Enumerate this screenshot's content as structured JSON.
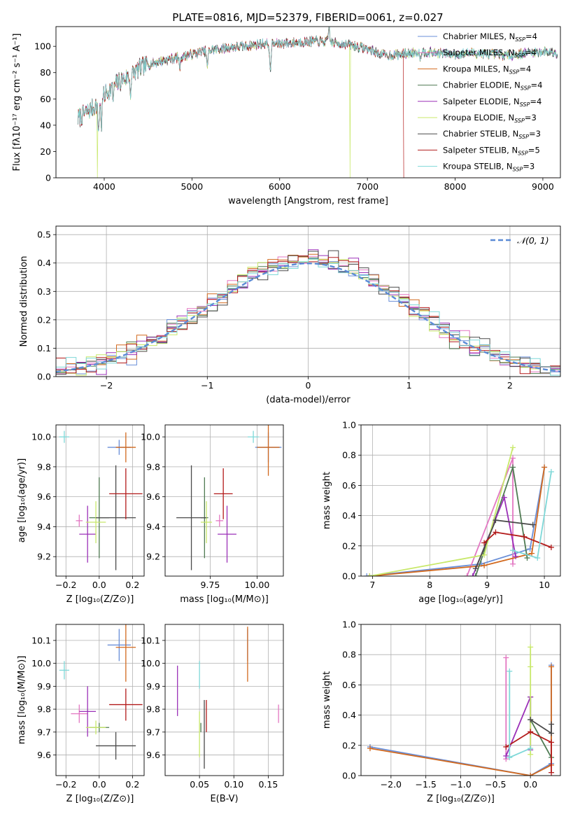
{
  "figure": {
    "title": "PLATE=0816, MJD=52379, FIBERID=0061, z=0.027"
  },
  "colors": {
    "Chabrier MILES": "#6a8fd8",
    "Salpeter MILES": "#e377c2",
    "Kroupa MILES": "#d2691e",
    "Chabrier ELODIE": "#4f7a52",
    "Salpeter ELODIE": "#9b30b8",
    "Kroupa ELODIE": "#c8e86a",
    "Chabrier STELIB": "#4a4a4a",
    "Salpeter STELIB": "#b31b1b",
    "Kroupa STELIB": "#7ed8d8",
    "normal": "#5b8bd6"
  },
  "chart_data": [
    {
      "id": "spectrum",
      "type": "line",
      "xlabel": "wavelength [Angstrom, rest frame]",
      "ylabel": "Flux [fλ10⁻¹⁷ erg cm⁻² s⁻¹ A⁻¹]",
      "xlim": [
        3450,
        9200
      ],
      "ylim": [
        0,
        115
      ],
      "xticks": [
        4000,
        5000,
        6000,
        7000,
        8000,
        9000
      ],
      "yticks": [
        0,
        20,
        40,
        60,
        80,
        100
      ],
      "legend_position": "top-right",
      "continuum_x": [
        3700,
        3800,
        3900,
        4000,
        4100,
        4200,
        4300,
        4400,
        4500,
        4600,
        4800,
        5000,
        5200,
        5400,
        5600,
        5800,
        6000,
        6200,
        6400,
        6600,
        6800,
        7000,
        7200,
        7400,
        7600,
        7800,
        8000,
        8200,
        8400,
        8600,
        8800,
        9000,
        9200
      ],
      "continuum_y": [
        45,
        50,
        55,
        63,
        70,
        74,
        78,
        83,
        86,
        88,
        91,
        94,
        97,
        99,
        100,
        102,
        102,
        103,
        104,
        103,
        101,
        98,
        93,
        94,
        96,
        95,
        94,
        95,
        94,
        93,
        95,
        96,
        95
      ],
      "series": [
        {
          "name": "Chabrier MILES",
          "nssp": "4"
        },
        {
          "name": "Salpeter MILES",
          "nssp": "4"
        },
        {
          "name": "Kroupa MILES",
          "nssp": "4"
        },
        {
          "name": "Chabrier ELODIE",
          "nssp": "4"
        },
        {
          "name": "Salpeter ELODIE",
          "nssp": "4"
        },
        {
          "name": "Kroupa ELODIE",
          "nssp": "3"
        },
        {
          "name": "Chabrier STELIB",
          "nssp": "3"
        },
        {
          "name": "Salpeter STELIB",
          "nssp": "5"
        },
        {
          "name": "Kroupa STELIB",
          "nssp": "3"
        }
      ],
      "drops": [
        {
          "series": "Kroupa ELODIE",
          "x_start": 3920,
          "x_end": 3920
        },
        {
          "series": "Kroupa ELODIE",
          "x_start": 6800,
          "x_end": 6800
        },
        {
          "series": "Salpeter STELIB",
          "x_start": 7410,
          "x_end": 9200
        }
      ]
    },
    {
      "id": "residuals",
      "type": "step-histogram",
      "xlabel": "(data-model)/error",
      "ylabel": "Normed distribution",
      "xlim": [
        -2.5,
        2.5
      ],
      "ylim": [
        0,
        0.53
      ],
      "xticks": [
        -2,
        -1,
        0,
        1,
        2
      ],
      "xtick_labels": [
        "−2",
        "−1",
        "0",
        "1",
        "2"
      ],
      "yticks": [
        0,
        0.1,
        0.2,
        0.3,
        0.4,
        0.5
      ],
      "ytick_labels": [
        "0.0",
        "0.1",
        "0.2",
        "0.3",
        "0.4",
        "0.5"
      ],
      "grid": true,
      "bin_width": 0.1,
      "normal_label": "𝒩(0, 1)",
      "legend_position": "top-right"
    },
    {
      "id": "age_vs_Z",
      "type": "errorbar",
      "xlabel": "Z [log₁₀(Z/Z⊙)]",
      "ylabel": "age  [log₁₀(age/yr)]",
      "xlim": [
        -0.26,
        0.27
      ],
      "ylim": [
        9.07,
        10.08
      ],
      "xticks": [
        -0.2,
        0.0,
        0.2
      ],
      "xtick_labels": [
        "−0.2",
        "0.0",
        "0.2"
      ],
      "yticks": [
        9.2,
        9.4,
        9.6,
        9.8,
        10.0
      ],
      "ytick_labels": [
        "9.2",
        "9.4",
        "9.6",
        "9.8",
        "10.0"
      ],
      "grid": true,
      "points": [
        {
          "series": "Chabrier MILES",
          "x": 0.12,
          "xerr": 0.07,
          "y": 9.93,
          "yerr": 0.05
        },
        {
          "series": "Salpeter MILES",
          "x": -0.12,
          "xerr": 0.02,
          "y": 9.44,
          "yerr": 0.04
        },
        {
          "series": "Kroupa MILES",
          "x": 0.16,
          "xerr": 0.06,
          "y": 9.93,
          "yerr": 0.1
        },
        {
          "series": "Chabrier ELODIE",
          "x": 0.0,
          "xerr": 0.06,
          "y": 9.46,
          "yerr": 0.27
        },
        {
          "series": "Salpeter ELODIE",
          "x": -0.07,
          "xerr": 0.05,
          "y": 9.35,
          "yerr": 0.19
        },
        {
          "series": "Kroupa ELODIE",
          "x": -0.02,
          "xerr": 0.06,
          "y": 9.43,
          "yerr": 0.14
        },
        {
          "series": "Chabrier STELIB",
          "x": 0.1,
          "xerr": 0.12,
          "y": 9.46,
          "yerr": 0.35
        },
        {
          "series": "Salpeter STELIB",
          "x": 0.16,
          "xerr": 0.1,
          "y": 9.62,
          "yerr": 0.17
        },
        {
          "series": "Kroupa STELIB",
          "x": -0.21,
          "xerr": 0.03,
          "y": 10.0,
          "yerr": 0.04
        }
      ]
    },
    {
      "id": "age_vs_mass",
      "type": "errorbar",
      "xlabel": "mass [log₁₀(M/M⊙)]",
      "ylabel": "",
      "xlim": [
        9.51,
        10.14
      ],
      "ylim": [
        9.07,
        10.08
      ],
      "xticks": [
        9.75,
        10.0
      ],
      "xtick_labels": [
        "9.75",
        "10.00"
      ],
      "yticks": [
        9.2,
        9.4,
        9.6,
        9.8,
        10.0
      ],
      "ytick_labels": [
        "9.2",
        "9.4",
        "9.6",
        "9.8",
        "10.0"
      ],
      "grid": true,
      "points": [
        {
          "series": "Chabrier MILES",
          "x": 10.06,
          "xerr": 0.07,
          "y": 9.93,
          "yerr": 0.1
        },
        {
          "series": "Salpeter MILES",
          "x": 9.8,
          "xerr": 0.02,
          "y": 9.44,
          "yerr": 0.04
        },
        {
          "series": "Kroupa MILES",
          "x": 10.06,
          "xerr": 0.06,
          "y": 9.93,
          "yerr": 0.19
        },
        {
          "series": "Chabrier ELODIE",
          "x": 9.72,
          "xerr": 0.02,
          "y": 9.46,
          "yerr": 0.27
        },
        {
          "series": "Salpeter ELODIE",
          "x": 9.84,
          "xerr": 0.05,
          "y": 9.35,
          "yerr": 0.19
        },
        {
          "series": "Kroupa ELODIE",
          "x": 9.73,
          "xerr": 0.03,
          "y": 9.43,
          "yerr": 0.14
        },
        {
          "series": "Chabrier STELIB",
          "x": 9.65,
          "xerr": 0.08,
          "y": 9.46,
          "yerr": 0.35
        },
        {
          "series": "Salpeter STELIB",
          "x": 9.82,
          "xerr": 0.05,
          "y": 9.62,
          "yerr": 0.17
        },
        {
          "series": "Kroupa STELIB",
          "x": 9.98,
          "xerr": 0.03,
          "y": 10.0,
          "yerr": 0.04
        }
      ]
    },
    {
      "id": "massweight_vs_age",
      "type": "line",
      "xlabel": "age  [log₁₀(age/yr)]",
      "ylabel": "mass weight",
      "xlim": [
        6.8,
        10.28
      ],
      "ylim": [
        0,
        1.0
      ],
      "xticks": [
        7,
        8,
        9,
        10
      ],
      "yticks": [
        0,
        0.2,
        0.4,
        0.6,
        0.8,
        1.0
      ],
      "ytick_labels": [
        "0.0",
        "0.2",
        "0.4",
        "0.6",
        "0.8",
        "1.0"
      ],
      "grid": true,
      "series": [
        {
          "name": "Chabrier MILES",
          "x": [
            6.9,
            8.9,
            9.75,
            10.0
          ],
          "y": [
            0.0,
            0.08,
            0.18,
            0.72
          ]
        },
        {
          "name": "Salpeter MILES",
          "x": [
            8.65,
            9.45,
            9.45
          ],
          "y": [
            0.0,
            0.78,
            0.08
          ]
        },
        {
          "name": "Kroupa MILES",
          "x": [
            6.95,
            8.95,
            9.78,
            10.0
          ],
          "y": [
            0.0,
            0.07,
            0.15,
            0.72
          ]
        },
        {
          "name": "Chabrier ELODIE",
          "x": [
            8.8,
            9.45,
            9.7
          ],
          "y": [
            0.0,
            0.72,
            0.12
          ]
        },
        {
          "name": "Salpeter ELODIE",
          "x": [
            8.75,
            9.3,
            9.5
          ],
          "y": [
            0.0,
            0.52,
            0.13
          ]
        },
        {
          "name": "Kroupa ELODIE",
          "x": [
            6.95,
            8.95,
            9.45
          ],
          "y": [
            0.0,
            0.14,
            0.85
          ]
        },
        {
          "name": "Chabrier STELIB",
          "x": [
            8.8,
            9.15,
            9.8
          ],
          "y": [
            0.05,
            0.37,
            0.34
          ]
        },
        {
          "name": "Salpeter STELIB",
          "x": [
            8.95,
            9.15,
            9.65,
            10.12
          ],
          "y": [
            0.22,
            0.29,
            0.26,
            0.19
          ]
        },
        {
          "name": "Kroupa STELIB",
          "x": [
            9.45,
            9.88,
            10.12
          ],
          "y": [
            0.17,
            0.12,
            0.69
          ]
        }
      ]
    },
    {
      "id": "mass_vs_Z",
      "type": "errorbar",
      "xlabel": "Z [log₁₀(Z/Z⊙)]",
      "ylabel": "mass [log₁₀(M/M⊙)]",
      "xlim": [
        -0.26,
        0.27
      ],
      "ylim": [
        9.51,
        10.17
      ],
      "xticks": [
        -0.2,
        0.0,
        0.2
      ],
      "xtick_labels": [
        "−0.2",
        "0.0",
        "0.2"
      ],
      "yticks": [
        9.6,
        9.7,
        9.8,
        9.9,
        10.0,
        10.1
      ],
      "ytick_labels": [
        "9.6",
        "9.7",
        "9.8",
        "9.9",
        "10.0",
        "10.1"
      ],
      "grid": true,
      "points": [
        {
          "series": "Chabrier MILES",
          "x": 0.12,
          "xerr": 0.07,
          "y": 10.08,
          "yerr": 0.07
        },
        {
          "series": "Salpeter MILES",
          "x": -0.12,
          "xerr": 0.05,
          "y": 9.78,
          "yerr": 0.04
        },
        {
          "series": "Kroupa MILES",
          "x": 0.16,
          "xerr": 0.06,
          "y": 10.07,
          "yerr": 0.15
        },
        {
          "series": "Chabrier ELODIE",
          "x": 0.0,
          "xerr": 0.06,
          "y": 9.72,
          "yerr": 0.02
        },
        {
          "series": "Salpeter ELODIE",
          "x": -0.07,
          "xerr": 0.05,
          "y": 9.79,
          "yerr": 0.11
        },
        {
          "series": "Kroupa ELODIE",
          "x": -0.02,
          "xerr": 0.06,
          "y": 9.72,
          "yerr": 0.03
        },
        {
          "series": "Chabrier STELIB",
          "x": 0.1,
          "xerr": 0.12,
          "y": 9.64,
          "yerr": 0.06
        },
        {
          "series": "Salpeter STELIB",
          "x": 0.16,
          "xerr": 0.1,
          "y": 9.82,
          "yerr": 0.07
        },
        {
          "series": "Kroupa STELIB",
          "x": -0.21,
          "xerr": 0.03,
          "y": 9.97,
          "yerr": 0.04
        }
      ]
    },
    {
      "id": "mass_vs_EBV",
      "type": "errorbar",
      "xlabel": "E(B-V)",
      "ylabel": "",
      "xlim": [
        0.0,
        0.172
      ],
      "ylim": [
        9.51,
        10.17
      ],
      "xticks": [
        0.05,
        0.1,
        0.15
      ],
      "xtick_labels": [
        "0.05",
        "0.10",
        "0.15"
      ],
      "yticks": [
        9.6,
        9.7,
        9.8,
        9.9,
        10.0,
        10.1
      ],
      "ytick_labels": [
        "9.6",
        "9.7",
        "9.8",
        "9.9",
        "10.0",
        "10.1"
      ],
      "grid": true,
      "points": [
        {
          "series": "Chabrier MILES",
          "x": 0.12,
          "xerr": 0.0,
          "y": 10.08,
          "yerr": 0.07
        },
        {
          "series": "Salpeter MILES",
          "x": 0.165,
          "xerr": 0.0,
          "y": 9.78,
          "yerr": 0.04
        },
        {
          "series": "Kroupa MILES",
          "x": 0.12,
          "xerr": 0.0,
          "y": 10.04,
          "yerr": 0.12
        },
        {
          "series": "Chabrier ELODIE",
          "x": 0.052,
          "xerr": 0.0,
          "y": 9.72,
          "yerr": 0.02
        },
        {
          "series": "Salpeter ELODIE",
          "x": 0.018,
          "xerr": 0.0,
          "y": 9.88,
          "yerr": 0.11
        },
        {
          "series": "Kroupa ELODIE",
          "x": 0.05,
          "xerr": 0.0,
          "y": 9.69,
          "yerr": 0.1
        },
        {
          "series": "Chabrier STELIB",
          "x": 0.057,
          "xerr": 0.0,
          "y": 9.69,
          "yerr": 0.15
        },
        {
          "series": "Salpeter STELIB",
          "x": 0.06,
          "xerr": 0.0,
          "y": 9.77,
          "yerr": 0.07
        },
        {
          "series": "Kroupa STELIB",
          "x": 0.05,
          "xerr": 0.0,
          "y": 9.95,
          "yerr": 0.06
        }
      ]
    },
    {
      "id": "massweight_vs_Z",
      "type": "line",
      "xlabel": "Z [log₁₀(Z/Z⊙)]",
      "ylabel": "mass weight",
      "xlim": [
        -2.43,
        0.43
      ],
      "ylim": [
        0,
        1.0
      ],
      "xticks": [
        -2.0,
        -1.5,
        -1.0,
        -0.5,
        0.0
      ],
      "xtick_labels": [
        "−2.0",
        "−1.5",
        "−1.0",
        "−0.5",
        "0.0"
      ],
      "yticks": [
        0,
        0.2,
        0.4,
        0.6,
        0.8,
        1.0
      ],
      "ytick_labels": [
        "0.0",
        "0.2",
        "0.4",
        "0.6",
        "0.8",
        "1.0"
      ],
      "grid": true,
      "series": [
        {
          "name": "Chabrier MILES",
          "x": [
            -2.3,
            0.0,
            0.3,
            0.3
          ],
          "y": [
            0.19,
            0.0,
            0.08,
            0.73
          ]
        },
        {
          "name": "Salpeter MILES",
          "x": [
            -0.35,
            -0.35
          ],
          "y": [
            0.11,
            0.78
          ]
        },
        {
          "name": "Kroupa MILES",
          "x": [
            -2.3,
            0.0,
            0.3,
            0.3
          ],
          "y": [
            0.18,
            0.0,
            0.07,
            0.72
          ]
        },
        {
          "name": "Chabrier ELODIE",
          "x": [
            0.0,
            0.0,
            0.3
          ],
          "y": [
            0.52,
            0.37,
            0.12
          ]
        },
        {
          "name": "Salpeter ELODIE",
          "x": [
            -0.35,
            0.0,
            0.0
          ],
          "y": [
            0.13,
            0.52,
            0.17
          ]
        },
        {
          "name": "Kroupa ELODIE",
          "x": [
            0.0,
            0.0,
            0.0
          ],
          "y": [
            0.14,
            0.85,
            0.72
          ]
        },
        {
          "name": "Chabrier STELIB",
          "x": [
            0.0,
            0.3,
            0.3
          ],
          "y": [
            0.37,
            0.28,
            0.34
          ]
        },
        {
          "name": "Salpeter STELIB",
          "x": [
            -0.35,
            0.0,
            0.3,
            0.3
          ],
          "y": [
            0.19,
            0.29,
            0.22,
            0.02
          ]
        },
        {
          "name": "Kroupa STELIB",
          "x": [
            -0.3,
            -0.3,
            0.0
          ],
          "y": [
            0.69,
            0.12,
            0.18
          ]
        }
      ]
    }
  ]
}
